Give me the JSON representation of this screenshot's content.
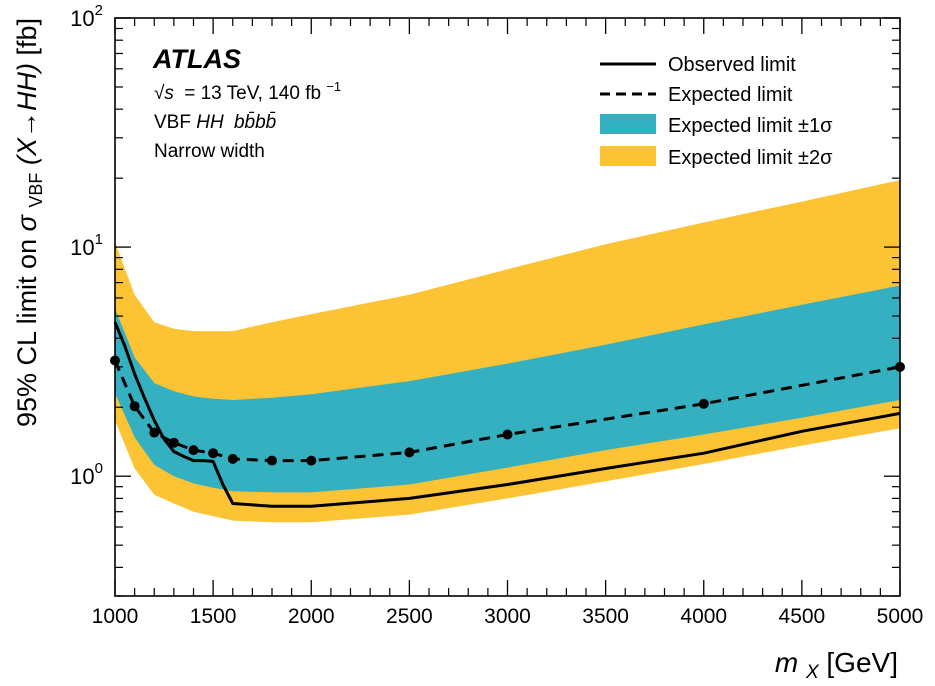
{
  "chart_data": {
    "type": "line",
    "xlabel": {
      "main": "m",
      "sub": "X",
      "unit": " [GeV]"
    },
    "ylabel": {
      "prefix": "95% CL limit on ",
      "sigma": "σ",
      "sub": "VBF",
      "middle": "(X→HH)",
      "unit": " [fb]"
    },
    "xlim": [
      1000,
      5000
    ],
    "ylim": [
      0.3,
      100
    ],
    "yscale": "log",
    "x_ticks": [
      "1000",
      "1500",
      "2000",
      "2500",
      "3000",
      "3500",
      "4000",
      "4500",
      "5000"
    ],
    "y_ticks": [
      {
        "value": 1,
        "base": "10",
        "exp": "0"
      },
      {
        "value": 10,
        "base": "10",
        "exp": "1"
      },
      {
        "value": 100,
        "base": "10",
        "exp": "2"
      }
    ],
    "annotations": {
      "experiment": "ATLAS",
      "energy": "= 13 TeV, 140 fb",
      "energy_sqrt": "√s",
      "energy_exp": "−1",
      "process_prefix": "VBF ",
      "process_hh": "HH",
      "process_final": "bb̄bb̄",
      "model": "Narrow width"
    },
    "legend": {
      "placement": "top-right",
      "entries": [
        {
          "label": "Observed limit",
          "style": "solid-line"
        },
        {
          "label": "Expected limit",
          "style": "dashed-line"
        },
        {
          "label": "Expected limit ±1σ",
          "style": "band",
          "color": "#35b0c0"
        },
        {
          "label": "Expected limit ±2σ",
          "style": "band",
          "color": "#fcc334"
        }
      ]
    },
    "series": [
      {
        "name": "Observed limit",
        "x": [
          1000,
          1050,
          1100,
          1150,
          1200,
          1250,
          1300,
          1350,
          1400,
          1450,
          1500,
          1550,
          1600,
          1800,
          2000,
          2500,
          3000,
          3500,
          4000,
          4500,
          5000
        ],
        "y": [
          4.7,
          3.7,
          2.8,
          2.2,
          1.75,
          1.45,
          1.28,
          1.22,
          1.17,
          1.17,
          1.16,
          0.92,
          0.76,
          0.74,
          0.74,
          0.8,
          0.92,
          1.08,
          1.26,
          1.57,
          1.88
        ]
      },
      {
        "name": "Expected limit",
        "x": [
          1000,
          1100,
          1200,
          1300,
          1400,
          1500,
          1600,
          1800,
          2000,
          2500,
          3000,
          4000,
          5000
        ],
        "y": [
          3.2,
          2.02,
          1.55,
          1.4,
          1.3,
          1.26,
          1.19,
          1.17,
          1.17,
          1.27,
          1.52,
          2.07,
          3.0
        ],
        "markers": true
      }
    ],
    "bands": [
      {
        "name": "Expected limit ±2σ",
        "color": "#fcc334",
        "x": [
          1000,
          1100,
          1200,
          1300,
          1400,
          1500,
          1600,
          1800,
          2000,
          2500,
          3000,
          3500,
          4000,
          4500,
          5000
        ],
        "low": [
          1.75,
          1.08,
          0.83,
          0.76,
          0.7,
          0.67,
          0.64,
          0.63,
          0.63,
          0.68,
          0.8,
          0.95,
          1.13,
          1.36,
          1.62
        ],
        "high": [
          10.5,
          6.2,
          4.7,
          4.4,
          4.3,
          4.3,
          4.3,
          4.7,
          5.1,
          6.2,
          8.0,
          10.3,
          12.8,
          15.8,
          19.6
        ]
      },
      {
        "name": "Expected limit ±1σ",
        "color": "#35b0c0",
        "x": [
          1000,
          1100,
          1200,
          1300,
          1400,
          1500,
          1600,
          1800,
          2000,
          2500,
          3000,
          3500,
          4000,
          4500,
          5000
        ],
        "low": [
          2.3,
          1.48,
          1.12,
          1.0,
          0.93,
          0.89,
          0.86,
          0.85,
          0.85,
          0.92,
          1.09,
          1.3,
          1.52,
          1.8,
          2.15
        ],
        "high": [
          5.4,
          3.3,
          2.55,
          2.35,
          2.23,
          2.18,
          2.15,
          2.2,
          2.28,
          2.6,
          3.1,
          3.75,
          4.6,
          5.6,
          6.8
        ]
      }
    ]
  }
}
